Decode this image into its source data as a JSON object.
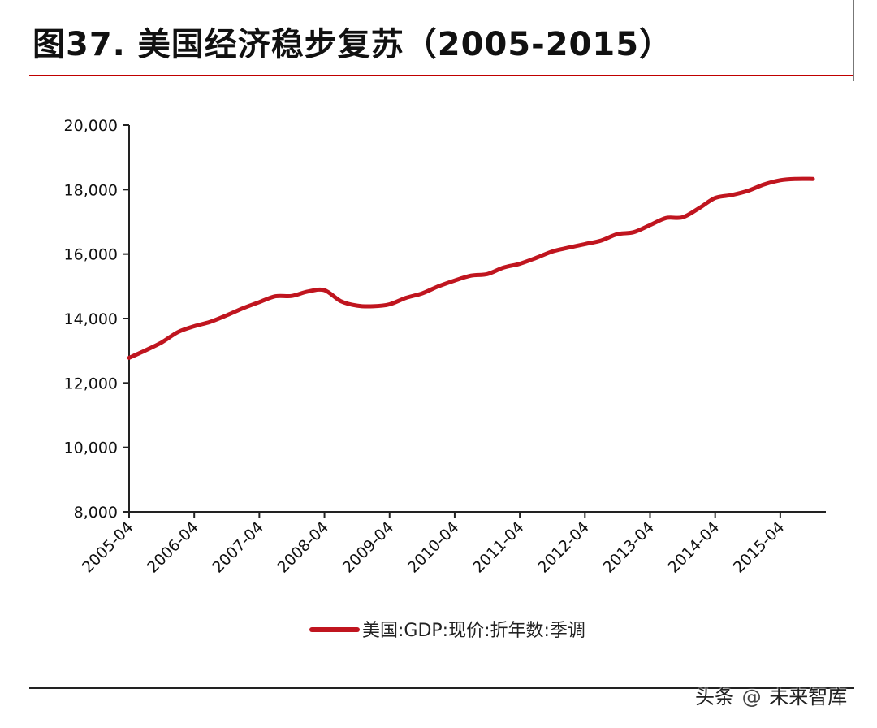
{
  "title": "图37. 美国经济稳步复苏（2005-2015）",
  "watermark": {
    "prefix": "头条",
    "account": "未来智库"
  },
  "colors": {
    "line": "#c0151f",
    "title_rule": "#c00000",
    "axis": "#222222"
  },
  "chart_data": {
    "type": "line",
    "title": "",
    "xlabel": "",
    "ylabel": "",
    "ylim": [
      8000,
      20000
    ],
    "yticks": [
      8000,
      10000,
      12000,
      14000,
      16000,
      18000,
      20000
    ],
    "ytick_labels": [
      "8,000",
      "10,000",
      "12,000",
      "14,000",
      "16,000",
      "18,000",
      "20,000"
    ],
    "xlim": [
      2005.25,
      2015.95
    ],
    "xticks": [
      2005.25,
      2006.25,
      2007.25,
      2008.25,
      2009.25,
      2010.25,
      2011.25,
      2012.25,
      2013.25,
      2014.25,
      2015.25
    ],
    "xtick_labels": [
      "2005-04",
      "2006-04",
      "2007-04",
      "2008-04",
      "2009-04",
      "2010-04",
      "2011-04",
      "2012-04",
      "2013-04",
      "2014-04",
      "2015-04"
    ],
    "legend": "bottom-center",
    "series": [
      {
        "name": "美国:GDP:现价:折年数:季调",
        "x": [
          2005.25,
          2005.5,
          2005.75,
          2006.0,
          2006.25,
          2006.5,
          2006.75,
          2007.0,
          2007.25,
          2007.5,
          2007.75,
          2008.0,
          2008.25,
          2008.5,
          2008.75,
          2009.0,
          2009.25,
          2009.5,
          2009.75,
          2010.0,
          2010.25,
          2010.5,
          2010.75,
          2011.0,
          2011.25,
          2011.5,
          2011.75,
          2012.0,
          2012.25,
          2012.5,
          2012.75,
          2013.0,
          2013.25,
          2013.5,
          2013.75,
          2014.0,
          2014.25,
          2014.5,
          2014.75,
          2015.0,
          2015.25,
          2015.5,
          2015.75
        ],
        "values": [
          12780,
          13010,
          13260,
          13580,
          13760,
          13900,
          14100,
          14320,
          14510,
          14690,
          14700,
          14840,
          14880,
          14540,
          14400,
          14380,
          14440,
          14640,
          14780,
          15000,
          15180,
          15330,
          15380,
          15580,
          15700,
          15880,
          16080,
          16200,
          16310,
          16420,
          16620,
          16680,
          16900,
          17120,
          17140,
          17420,
          17740,
          17830,
          17960,
          18160,
          18290,
          18330,
          18330
        ]
      }
    ]
  }
}
